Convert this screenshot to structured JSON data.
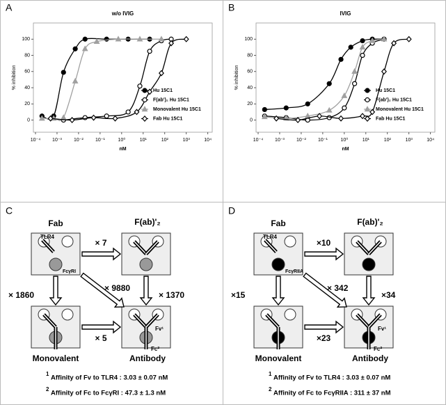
{
  "chart_data": [
    {
      "type": "line",
      "panel": "A",
      "title": "w/o IVIG",
      "y_label": "% inhibition",
      "x_label": "nM",
      "log_x": true,
      "xlim": [
        8e-05,
        16000
      ],
      "ylim": [
        -15,
        120
      ],
      "xticks": [
        {
          "value": 0.0001,
          "label": "10⁻⁴"
        },
        {
          "value": 0.001,
          "label": "10⁻³"
        },
        {
          "value": 0.01,
          "label": "10⁻²"
        },
        {
          "value": 0.1,
          "label": "10⁻¹"
        },
        {
          "value": 1,
          "label": "10⁰"
        },
        {
          "value": 10,
          "label": "10¹"
        },
        {
          "value": 100,
          "label": "10²"
        },
        {
          "value": 1000,
          "label": "10³"
        },
        {
          "value": 10000,
          "label": "10⁴"
        }
      ],
      "yticks": [
        0,
        20,
        40,
        60,
        80,
        100
      ],
      "legend": "lower right",
      "series": [
        {
          "name": "Hu 15C1",
          "color": "#000000",
          "marker": "circle",
          "filled": true,
          "x": [
            0.0002,
            0.0007,
            0.002,
            0.007,
            0.02,
            0.2,
            2,
            20
          ],
          "values": [
            5,
            5,
            59,
            88,
            100,
            100,
            100,
            100
          ]
        },
        {
          "name": "F(ab')₂ Hu 15C1",
          "color": "#000000",
          "marker": "circle",
          "filled": false,
          "x": [
            0.002,
            0.02,
            0.2,
            2,
            7,
            20,
            70,
            200
          ],
          "values": [
            0,
            3,
            5,
            10,
            42,
            85,
            98,
            100
          ]
        },
        {
          "name": "Monovalent Hu 15C1",
          "color": "#a0a0a0",
          "marker": "triangle",
          "filled": true,
          "x": [
            0.0002,
            0.0007,
            0.002,
            0.007,
            0.02,
            0.07,
            0.7,
            7,
            70
          ],
          "values": [
            2,
            2,
            3,
            48,
            88,
            97,
            100,
            100,
            100
          ]
        },
        {
          "name": "Fab Hu 15C1",
          "color": "#000000",
          "marker": "diamond",
          "filled": false,
          "x": [
            0.0005,
            0.005,
            0.05,
            0.5,
            5,
            20,
            70,
            200,
            1000
          ],
          "values": [
            2,
            0,
            3,
            2,
            10,
            35,
            58,
            95,
            100
          ]
        }
      ]
    },
    {
      "type": "line",
      "panel": "B",
      "title": "IVIG",
      "y_label": "% inhibition",
      "x_label": "nM",
      "log_x": true,
      "xlim": [
        8e-05,
        16000
      ],
      "ylim": [
        -15,
        120
      ],
      "xticks": [
        {
          "value": 0.0001,
          "label": "10⁻⁴"
        },
        {
          "value": 0.001,
          "label": "10⁻³"
        },
        {
          "value": 0.01,
          "label": "10⁻²"
        },
        {
          "value": 0.1,
          "label": "10⁻¹"
        },
        {
          "value": 1,
          "label": "10⁰"
        },
        {
          "value": 10,
          "label": "10¹"
        },
        {
          "value": 100,
          "label": "10²"
        },
        {
          "value": 1000,
          "label": "10³"
        },
        {
          "value": 10000,
          "label": "10⁴"
        }
      ],
      "yticks": [
        0,
        20,
        40,
        60,
        80,
        100
      ],
      "legend": "lower right",
      "series": [
        {
          "name": "Hu 15C1",
          "color": "#000000",
          "marker": "circle",
          "filled": true,
          "x": [
            0.0002,
            0.002,
            0.02,
            0.2,
            0.7,
            2,
            7,
            20,
            70
          ],
          "values": [
            13,
            15,
            20,
            45,
            75,
            90,
            98,
            100,
            100
          ]
        },
        {
          "name": "F(ab')₂ Hu 15C1",
          "color": "#000000",
          "marker": "circle",
          "filled": false,
          "x": [
            0.0002,
            0.002,
            0.02,
            0.2,
            1,
            3,
            7,
            20,
            70
          ],
          "values": [
            5,
            3,
            0,
            3,
            15,
            45,
            80,
            95,
            100
          ]
        },
        {
          "name": "Monovalent Hu 15C1",
          "color": "#a0a0a0",
          "marker": "triangle",
          "filled": true,
          "x": [
            0.0002,
            0.002,
            0.02,
            0.2,
            1,
            3,
            7,
            20,
            70
          ],
          "values": [
            4,
            2,
            5,
            12,
            30,
            60,
            90,
            98,
            100
          ]
        },
        {
          "name": "Fab Hu 15C1",
          "color": "#000000",
          "marker": "diamond",
          "filled": false,
          "x": [
            0.0007,
            0.007,
            0.07,
            0.7,
            7,
            20,
            70,
            200,
            1000
          ],
          "values": [
            2,
            0,
            5,
            2,
            5,
            10,
            60,
            95,
            100
          ]
        }
      ]
    }
  ],
  "diagrams": [
    {
      "panel": "C",
      "fc_color": "#999999",
      "nodes": [
        {
          "label": "Fab"
        },
        {
          "label": "F(ab)'₂"
        },
        {
          "label": "Monovalent"
        },
        {
          "label": "Antibody"
        }
      ],
      "edges": [
        "× 7",
        "× 1860",
        "× 9880",
        "× 1370",
        "× 5"
      ],
      "receptor_label": "TLR4",
      "fc_receptor_label": "FcγRI",
      "fv_label": "Fv¹",
      "fc_label": "Fc²",
      "notes": [
        {
          "mark": "1",
          "text": "Affinity of Fv to TLR4 : 3.03 ± 0.07 nM"
        },
        {
          "mark": "2",
          "text": "Affinity of Fc to FcγRI : 47.3 ± 1.3 nM"
        }
      ]
    },
    {
      "panel": "D",
      "fc_color": "#000000",
      "nodes": [
        {
          "label": "Fab"
        },
        {
          "label": "F(ab)'₂"
        },
        {
          "label": "Monovalent"
        },
        {
          "label": "Antibody"
        }
      ],
      "edges": [
        "×10",
        "×15",
        "× 342",
        "×34",
        "×23"
      ],
      "receptor_label": "TLR4",
      "fc_receptor_label": "FcγRIIA",
      "fv_label": "Fv¹",
      "fc_label": "Fc²",
      "notes": [
        {
          "mark": "1",
          "text": "Affinity of Fv to TLR4 : 3.03 ± 0.07 nM"
        },
        {
          "mark": "2",
          "text": "Affinity of Fc to FcγRIIA : 311 ± 37 nM"
        }
      ]
    }
  ]
}
